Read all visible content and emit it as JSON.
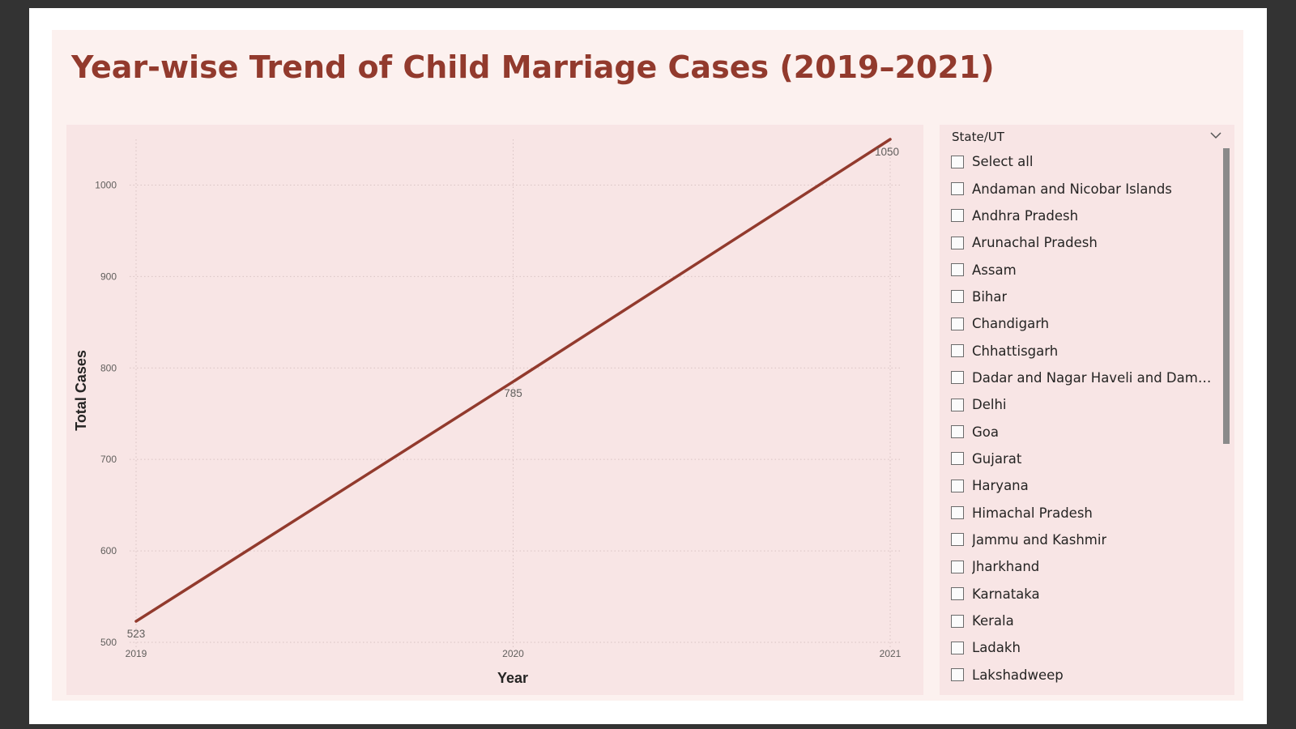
{
  "page": {
    "title": "Year-wise Trend of Child Marriage Cases (2019–2021)"
  },
  "colors": {
    "title": "#923a2d",
    "line": "#923a2d",
    "chart_background": "#f8e5e5",
    "panel_background": "#fcf1ef"
  },
  "chart_data": {
    "type": "line",
    "title": "",
    "xlabel": "Year",
    "ylabel": "Total Cases",
    "x": [
      "2019",
      "2020",
      "2021"
    ],
    "series": [
      {
        "values": [
          523,
          785,
          1050
        ]
      }
    ],
    "data_labels": [
      "523",
      "785",
      "1050"
    ],
    "ylim": [
      500,
      1050
    ],
    "yticks": [
      500,
      600,
      700,
      800,
      900,
      1000
    ],
    "grid": true,
    "legend": "none"
  },
  "slicer": {
    "header": "State/UT",
    "chevron_icon": "chevron-down-icon",
    "items": [
      "Select all",
      "Andaman and Nicobar Islands",
      "Andhra Pradesh",
      "Arunachal Pradesh",
      "Assam",
      "Bihar",
      "Chandigarh",
      "Chhattisgarh",
      "Dadar and Nagar Haveli and Daman ...",
      "Delhi",
      "Goa",
      "Gujarat",
      "Haryana",
      "Himachal Pradesh",
      "Jammu and Kashmir",
      "Jharkhand",
      "Karnataka",
      "Kerala",
      "Ladakh",
      "Lakshadweep"
    ]
  }
}
